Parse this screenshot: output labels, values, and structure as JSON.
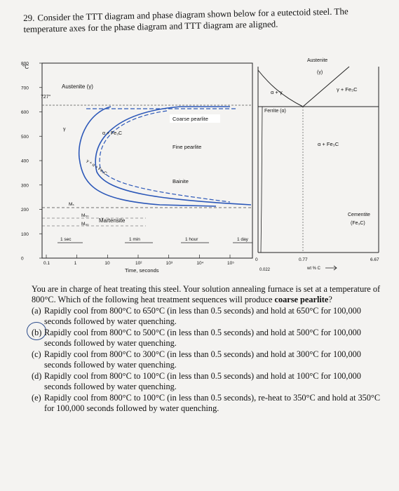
{
  "question": {
    "number": "29.",
    "text": "Consider the TTT diagram and phase diagram shown below for a eutectoid steel. The temperature axes for the phase diagram and TTT diagram are aligned."
  },
  "ttt_diagram": {
    "y_axis_unit": "°C",
    "y_ticks": [
      "800",
      "700",
      "600",
      "500",
      "400",
      "300",
      "200",
      "100",
      "0"
    ],
    "x_ticks": [
      "0.1",
      "1",
      "10",
      "10²",
      "10³",
      "10⁴",
      "10⁵"
    ],
    "x_axis_label": "Time, seconds",
    "time_markers": [
      "1 sec",
      "1 min",
      "1 hour",
      "1 day"
    ],
    "eutectoid_temp_label": "727°",
    "region_labels": {
      "austenite": "Austenite (γ)",
      "gamma": "γ",
      "alpha_fe3c": "α + Fe₃C",
      "gamma_alpha_fe3c": "γ + α + Fe₃C",
      "coarse_pearlite": "Coarse pearlite",
      "fine_pearlite": "Fine pearlite",
      "bainite": "Bainite",
      "martensite": "Martensite",
      "ms": "Mₛ",
      "m50": "M₅₀",
      "m90": "M₉₀"
    }
  },
  "phase_diagram": {
    "labels": {
      "austenite": "Austenite",
      "austenite_symbol": "(γ)",
      "alpha_gamma": "α + γ",
      "gamma_fe3c": "γ + Fe₃C",
      "ferrite": "Ferrite (α)",
      "alpha_fe3c": "α + Fe₃C",
      "cementite": "Cementite",
      "cementite_formula": "(Fe₃C)"
    },
    "x_ticks": [
      "0",
      "0.022",
      "0.77",
      "6.67"
    ],
    "x_axis_label": "wt % C"
  },
  "problem": {
    "intro_1": "You are in charge of heat treating this steel. Your solution annealing furnace is set at a temperature of 800°C. Which of the following heat treatment sequences will produce ",
    "intro_bold": "coarse pearlite",
    "intro_2": "?",
    "options": [
      {
        "label": "(a)",
        "text": "Rapidly cool from 800°C to 650°C (in less than 0.5 seconds) and hold at 650°C for 100,000 seconds followed by water quenching."
      },
      {
        "label": "(b)",
        "text": "Rapidly cool from 800°C to 500°C (in less than 0.5 seconds) and hold at 500°C for 100,000 seconds followed by water quenching."
      },
      {
        "label": "(c)",
        "text": "Rapidly cool from 800°C to 300°C (in less than 0.5 seconds) and hold at 300°C for 100,000 seconds followed by water quenching."
      },
      {
        "label": "(d)",
        "text": "Rapidly cool from 800°C to 100°C (in less than 0.5 seconds) and hold at 100°C for 100,000 seconds followed by water quenching."
      },
      {
        "label": "(e)",
        "text": "Rapidly cool from 800°C to 100°C (in less than 0.5 seconds), re-heat to 350°C and hold at 350°C for 100,000 seconds followed by water quenching."
      }
    ]
  },
  "colors": {
    "curve_blue": "#2b57b8",
    "selection_circle": "#2a4a8a"
  }
}
